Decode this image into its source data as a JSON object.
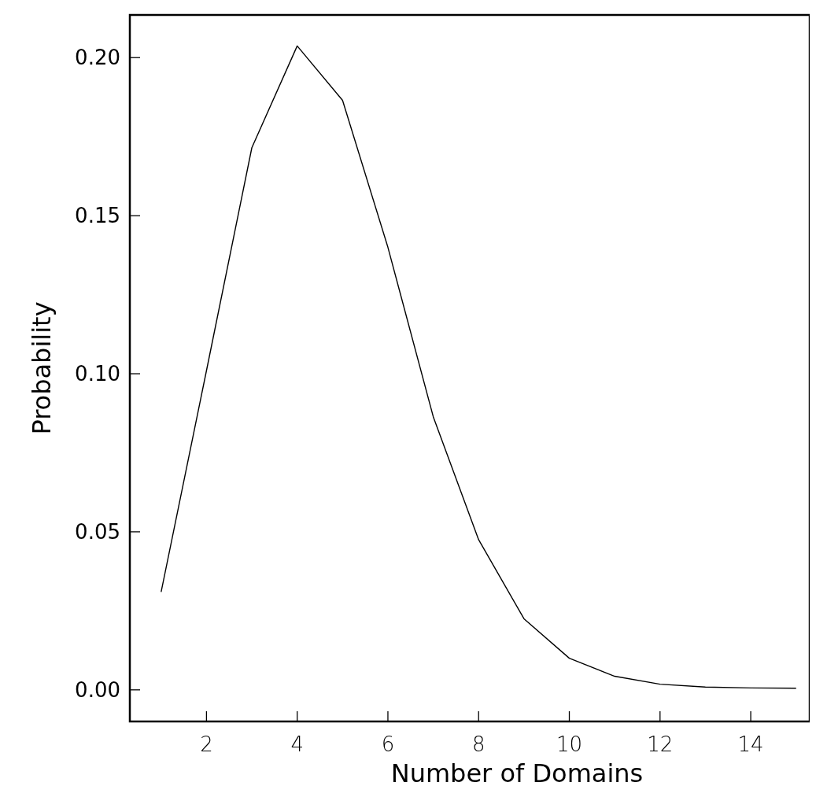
{
  "chart_data": {
    "type": "line",
    "xlabel": "Number of Domains",
    "ylabel": "Probability",
    "x": [
      1,
      2,
      3,
      4,
      5,
      6,
      7,
      8,
      9,
      10,
      11,
      12,
      13,
      14,
      15
    ],
    "series": [
      {
        "color": "#000000",
        "values": [
          0.031,
          0.101,
          0.1715,
          0.2037,
          0.1865,
          0.14,
          0.0864,
          0.0475,
          0.0225,
          0.01,
          0.0043,
          0.0018,
          0.0009,
          0.0006,
          0.0005
        ]
      }
    ],
    "xlim": [
      0.31,
      15.3
    ],
    "ylim": [
      -0.01,
      0.2135
    ],
    "xticks": [
      2,
      4,
      6,
      8,
      10,
      12,
      14
    ],
    "yticks": [
      {
        "value": 0,
        "label": "0.00"
      },
      {
        "value": 0.05,
        "label": "0.05"
      },
      {
        "value": 0.1,
        "label": "0.10"
      },
      {
        "value": 0.15,
        "label": "0.15"
      },
      {
        "value": 0.2,
        "label": "0.20"
      }
    ],
    "grid": false,
    "marker": "none",
    "line_style": "solid"
  }
}
